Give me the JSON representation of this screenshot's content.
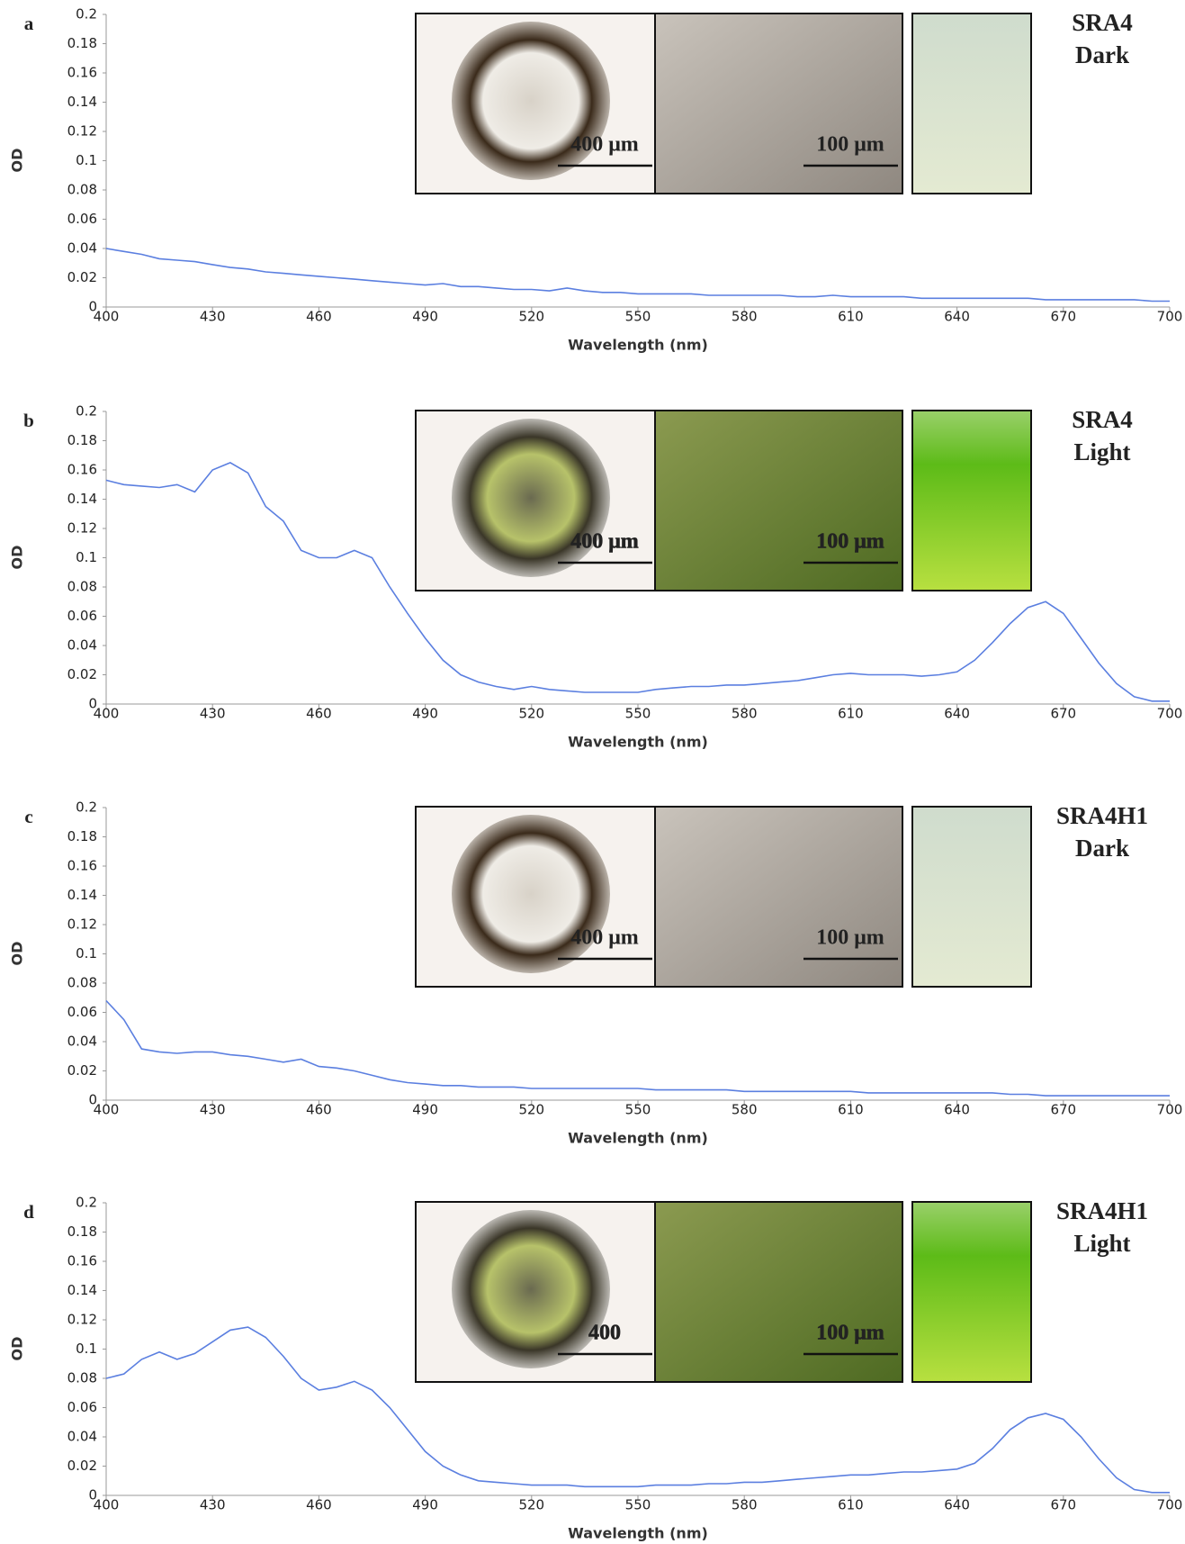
{
  "chart_data": [
    {
      "type": "line",
      "panel": "a",
      "sample": "SRA4",
      "condition": "Dark",
      "scale_bars": [
        "400 μm",
        "100 μm"
      ],
      "ylabel": "OD",
      "xlabel": "Wavelength (nm)",
      "color": "#5b7fe0",
      "grid": false,
      "xlim": [
        400,
        700
      ],
      "ylim": [
        0,
        0.2
      ],
      "xticks": [
        400,
        430,
        460,
        490,
        520,
        550,
        580,
        610,
        640,
        670,
        700
      ],
      "yticks": [
        0,
        0.02,
        0.04,
        0.06,
        0.08,
        0.1,
        0.12,
        0.14,
        0.16,
        0.18,
        0.2
      ],
      "x": [
        400,
        405,
        410,
        415,
        420,
        425,
        430,
        435,
        440,
        445,
        450,
        455,
        460,
        465,
        470,
        475,
        480,
        485,
        490,
        495,
        500,
        505,
        510,
        515,
        520,
        525,
        530,
        535,
        540,
        545,
        550,
        555,
        560,
        565,
        570,
        575,
        580,
        585,
        590,
        595,
        600,
        605,
        610,
        615,
        620,
        625,
        630,
        635,
        640,
        645,
        650,
        655,
        660,
        665,
        670,
        675,
        680,
        685,
        690,
        695,
        700
      ],
      "values": [
        0.04,
        0.038,
        0.036,
        0.033,
        0.032,
        0.031,
        0.029,
        0.027,
        0.026,
        0.024,
        0.023,
        0.022,
        0.021,
        0.02,
        0.019,
        0.018,
        0.017,
        0.016,
        0.015,
        0.016,
        0.014,
        0.014,
        0.013,
        0.012,
        0.012,
        0.011,
        0.013,
        0.011,
        0.01,
        0.01,
        0.009,
        0.009,
        0.009,
        0.009,
        0.008,
        0.008,
        0.008,
        0.008,
        0.008,
        0.007,
        0.007,
        0.008,
        0.007,
        0.007,
        0.007,
        0.007,
        0.006,
        0.006,
        0.006,
        0.006,
        0.006,
        0.006,
        0.006,
        0.005,
        0.005,
        0.005,
        0.005,
        0.005,
        0.005,
        0.004,
        0.004
      ]
    },
    {
      "type": "line",
      "panel": "b",
      "sample": "SRA4",
      "condition": "Light",
      "scale_bars": [
        "400 μm",
        "100 μm"
      ],
      "ylabel": "OD",
      "xlabel": "Wavelength (nm)",
      "color": "#5b7fe0",
      "grid": false,
      "xlim": [
        400,
        700
      ],
      "ylim": [
        0,
        0.2
      ],
      "xticks": [
        400,
        430,
        460,
        490,
        520,
        550,
        580,
        610,
        640,
        670,
        700
      ],
      "yticks": [
        0,
        0.02,
        0.04,
        0.06,
        0.08,
        0.1,
        0.12,
        0.14,
        0.16,
        0.18,
        0.2
      ],
      "x": [
        400,
        405,
        410,
        415,
        420,
        425,
        430,
        435,
        440,
        445,
        450,
        455,
        460,
        465,
        470,
        475,
        480,
        485,
        490,
        495,
        500,
        505,
        510,
        515,
        520,
        525,
        530,
        535,
        540,
        545,
        550,
        555,
        560,
        565,
        570,
        575,
        580,
        585,
        590,
        595,
        600,
        605,
        610,
        615,
        620,
        625,
        630,
        635,
        640,
        645,
        650,
        655,
        660,
        665,
        670,
        675,
        680,
        685,
        690,
        695,
        700
      ],
      "values": [
        0.153,
        0.15,
        0.149,
        0.148,
        0.15,
        0.145,
        0.16,
        0.165,
        0.158,
        0.135,
        0.125,
        0.105,
        0.1,
        0.1,
        0.105,
        0.1,
        0.08,
        0.062,
        0.045,
        0.03,
        0.02,
        0.015,
        0.012,
        0.01,
        0.012,
        0.01,
        0.009,
        0.008,
        0.008,
        0.008,
        0.008,
        0.01,
        0.011,
        0.012,
        0.012,
        0.013,
        0.013,
        0.014,
        0.015,
        0.016,
        0.018,
        0.02,
        0.021,
        0.02,
        0.02,
        0.02,
        0.019,
        0.02,
        0.022,
        0.03,
        0.042,
        0.055,
        0.066,
        0.07,
        0.062,
        0.045,
        0.028,
        0.014,
        0.005,
        0.002,
        0.002
      ]
    },
    {
      "type": "line",
      "panel": "c",
      "sample": "SRA4H1",
      "condition": "Dark",
      "scale_bars": [
        "400 μm",
        "100 μm"
      ],
      "ylabel": "OD",
      "xlabel": "Wavelength (nm)",
      "color": "#5b7fe0",
      "grid": false,
      "xlim": [
        400,
        700
      ],
      "ylim": [
        0,
        0.2
      ],
      "xticks": [
        400,
        430,
        460,
        490,
        520,
        550,
        580,
        610,
        640,
        670,
        700
      ],
      "yticks": [
        0,
        0.02,
        0.04,
        0.06,
        0.08,
        0.1,
        0.12,
        0.14,
        0.16,
        0.18,
        0.2
      ],
      "x": [
        400,
        405,
        410,
        415,
        420,
        425,
        430,
        435,
        440,
        445,
        450,
        455,
        460,
        465,
        470,
        475,
        480,
        485,
        490,
        495,
        500,
        505,
        510,
        515,
        520,
        525,
        530,
        535,
        540,
        545,
        550,
        555,
        560,
        565,
        570,
        575,
        580,
        585,
        590,
        595,
        600,
        605,
        610,
        615,
        620,
        625,
        630,
        635,
        640,
        645,
        650,
        655,
        660,
        665,
        670,
        675,
        680,
        685,
        690,
        695,
        700
      ],
      "values": [
        0.068,
        0.055,
        0.035,
        0.033,
        0.032,
        0.033,
        0.033,
        0.031,
        0.03,
        0.028,
        0.026,
        0.028,
        0.023,
        0.022,
        0.02,
        0.017,
        0.014,
        0.012,
        0.011,
        0.01,
        0.01,
        0.009,
        0.009,
        0.009,
        0.008,
        0.008,
        0.008,
        0.008,
        0.008,
        0.008,
        0.008,
        0.007,
        0.007,
        0.007,
        0.007,
        0.007,
        0.006,
        0.006,
        0.006,
        0.006,
        0.006,
        0.006,
        0.006,
        0.005,
        0.005,
        0.005,
        0.005,
        0.005,
        0.005,
        0.005,
        0.005,
        0.004,
        0.004,
        0.003,
        0.003,
        0.003,
        0.003,
        0.003,
        0.003,
        0.003,
        0.003
      ]
    },
    {
      "type": "line",
      "panel": "d",
      "sample": "SRA4H1",
      "condition": "Light",
      "scale_bars": [
        "400",
        "100 μm"
      ],
      "ylabel": "OD",
      "xlabel": "Wavelength (nm)",
      "color": "#5b7fe0",
      "grid": false,
      "xlim": [
        400,
        700
      ],
      "ylim": [
        0,
        0.2
      ],
      "xticks": [
        400,
        430,
        460,
        490,
        520,
        550,
        580,
        610,
        640,
        670,
        700
      ],
      "yticks": [
        0,
        0.02,
        0.04,
        0.06,
        0.08,
        0.1,
        0.12,
        0.14,
        0.16,
        0.18,
        0.2
      ],
      "x": [
        400,
        405,
        410,
        415,
        420,
        425,
        430,
        435,
        440,
        445,
        450,
        455,
        460,
        465,
        470,
        475,
        480,
        485,
        490,
        495,
        500,
        505,
        510,
        515,
        520,
        525,
        530,
        535,
        540,
        545,
        550,
        555,
        560,
        565,
        570,
        575,
        580,
        585,
        590,
        595,
        600,
        605,
        610,
        615,
        620,
        625,
        630,
        635,
        640,
        645,
        650,
        655,
        660,
        665,
        670,
        675,
        680,
        685,
        690,
        695,
        700
      ],
      "values": [
        0.08,
        0.083,
        0.093,
        0.098,
        0.093,
        0.097,
        0.105,
        0.113,
        0.115,
        0.108,
        0.095,
        0.08,
        0.072,
        0.074,
        0.078,
        0.072,
        0.06,
        0.045,
        0.03,
        0.02,
        0.014,
        0.01,
        0.009,
        0.008,
        0.007,
        0.007,
        0.007,
        0.006,
        0.006,
        0.006,
        0.006,
        0.007,
        0.007,
        0.007,
        0.008,
        0.008,
        0.009,
        0.009,
        0.01,
        0.011,
        0.012,
        0.013,
        0.014,
        0.014,
        0.015,
        0.016,
        0.016,
        0.017,
        0.018,
        0.022,
        0.032,
        0.045,
        0.053,
        0.056,
        0.052,
        0.04,
        0.025,
        0.012,
        0.004,
        0.002,
        0.002
      ]
    }
  ]
}
